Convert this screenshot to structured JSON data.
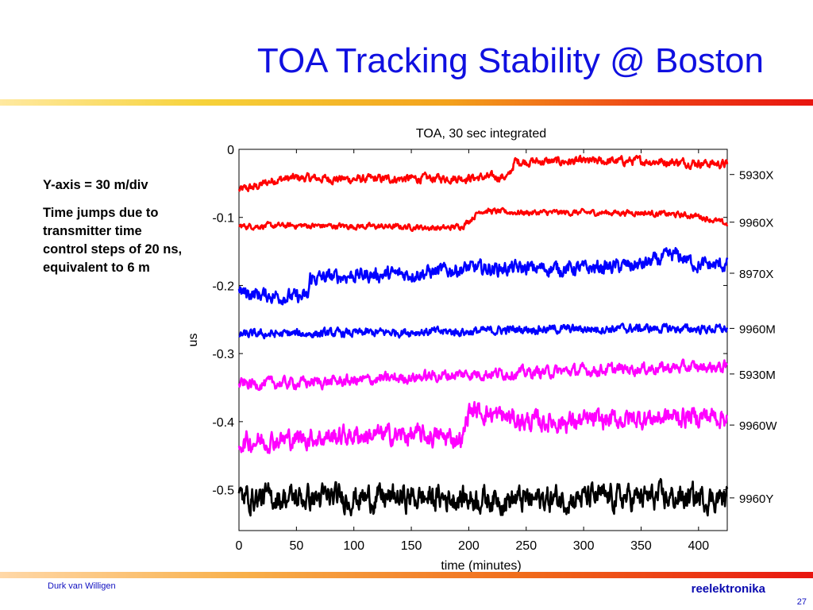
{
  "slide": {
    "title": "TOA Tracking Stability @ Boston",
    "notes": [
      "Y-axis = 30 m/div",
      "Time jumps due to transmitter time control steps of 20 ns, equivalent to 6 m"
    ],
    "footer_author": "Durk van Willigen",
    "footer_brand": "reelektronika",
    "page_number": "27",
    "accent_colors": {
      "title": "#1010e0",
      "bar_start": "#f6d23a",
      "bar_end": "#e81510"
    }
  },
  "chart_data": {
    "type": "line",
    "title": "TOA, 30 sec integrated",
    "xlabel": "time (minutes)",
    "ylabel": "us",
    "xlim": [
      0,
      425
    ],
    "ylim": [
      -0.56,
      0
    ],
    "xticks": [
      0,
      50,
      100,
      150,
      200,
      250,
      300,
      350,
      400
    ],
    "yticks": [
      0,
      -0.1,
      -0.2,
      -0.3,
      -0.4,
      -0.5
    ],
    "ytick_labels": [
      "0",
      "-0.1",
      "-0.2",
      "-0.3",
      "-0.4",
      "-0.5"
    ],
    "grid": false,
    "legend": "right-side labels",
    "series": [
      {
        "name": "5930X",
        "color": "#ff0000",
        "label_y": -0.037,
        "x": [
          0,
          15,
          30,
          50,
          100,
          150,
          200,
          235,
          240,
          250,
          300,
          350,
          400,
          425
        ],
        "y": [
          -0.06,
          -0.055,
          -0.045,
          -0.042,
          -0.044,
          -0.043,
          -0.042,
          -0.04,
          -0.018,
          -0.018,
          -0.018,
          -0.017,
          -0.02,
          -0.022
        ],
        "noise": 0.006
      },
      {
        "name": "9960X",
        "color": "#ff0000",
        "label_y": -0.107,
        "x": [
          0,
          50,
          100,
          150,
          180,
          195,
          205,
          210,
          230,
          250,
          300,
          350,
          400,
          425
        ],
        "y": [
          -0.113,
          -0.112,
          -0.113,
          -0.114,
          -0.116,
          -0.112,
          -0.098,
          -0.09,
          -0.092,
          -0.093,
          -0.093,
          -0.093,
          -0.098,
          -0.11
        ],
        "noise": 0.004
      },
      {
        "name": "8970X",
        "color": "#0000ff",
        "label_y": -0.182,
        "x": [
          0,
          30,
          60,
          62,
          100,
          150,
          200,
          250,
          300,
          350,
          380,
          400,
          425
        ],
        "y": [
          -0.21,
          -0.215,
          -0.218,
          -0.19,
          -0.185,
          -0.183,
          -0.175,
          -0.175,
          -0.175,
          -0.17,
          -0.155,
          -0.17,
          -0.17
        ],
        "noise": 0.01
      },
      {
        "name": "9960M",
        "color": "#0000ff",
        "label_y": -0.263,
        "x": [
          0,
          50,
          100,
          150,
          200,
          250,
          300,
          350,
          400,
          425
        ],
        "y": [
          -0.272,
          -0.271,
          -0.27,
          -0.268,
          -0.268,
          -0.264,
          -0.264,
          -0.263,
          -0.264,
          -0.264
        ],
        "noise": 0.006
      },
      {
        "name": "5930M",
        "color": "#ff00ff",
        "label_y": -0.33,
        "x": [
          0,
          50,
          100,
          150,
          200,
          250,
          300,
          350,
          400,
          425
        ],
        "y": [
          -0.345,
          -0.343,
          -0.34,
          -0.335,
          -0.33,
          -0.328,
          -0.325,
          -0.322,
          -0.32,
          -0.32
        ],
        "noise": 0.008
      },
      {
        "name": "9960W",
        "color": "#ff00ff",
        "label_y": -0.405,
        "x": [
          0,
          50,
          100,
          150,
          195,
          200,
          250,
          300,
          350,
          400,
          425
        ],
        "y": [
          -0.43,
          -0.425,
          -0.42,
          -0.42,
          -0.425,
          -0.382,
          -0.4,
          -0.4,
          -0.395,
          -0.392,
          -0.392
        ],
        "noise": 0.014
      },
      {
        "name": "9960Y",
        "color": "#000000",
        "label_y": -0.512,
        "x": [
          0,
          50,
          100,
          150,
          200,
          250,
          300,
          350,
          400,
          425
        ],
        "y": [
          -0.512,
          -0.512,
          -0.512,
          -0.512,
          -0.512,
          -0.515,
          -0.512,
          -0.512,
          -0.512,
          -0.512
        ],
        "noise": 0.018
      }
    ]
  }
}
